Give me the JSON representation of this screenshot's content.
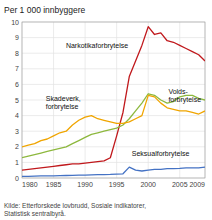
{
  "chart_data": {
    "type": "line",
    "title": "Per 1 000 innbyggere",
    "annotations": [
      "Kilde: Etterforskede lovbrudd, Sosiale indikatorer,\nStatistisk sentralbyrå."
    ],
    "x": [
      1980,
      1981,
      1982,
      1983,
      1984,
      1985,
      1986,
      1987,
      1988,
      1989,
      1990,
      1991,
      1992,
      1993,
      1994,
      1995,
      1996,
      1997,
      1998,
      1999,
      2000,
      2001,
      2002,
      2003,
      2004,
      2005,
      2006,
      2007,
      2008,
      2009
    ],
    "series": [
      {
        "name": "Narkotikaforbrytelse",
        "color": "#c0181c",
        "values": [
          0.5,
          0.55,
          0.6,
          0.65,
          0.7,
          0.75,
          0.8,
          0.85,
          0.9,
          0.9,
          0.95,
          1.0,
          1.05,
          1.1,
          1.3,
          2.7,
          4.2,
          6.5,
          7.5,
          8.5,
          9.7,
          9.2,
          9.3,
          8.8,
          8.7,
          8.5,
          8.3,
          8.1,
          7.9,
          7.5
        ]
      },
      {
        "name": "Volds-\nforbrytelse",
        "color": "#8db83e",
        "values": [
          1.3,
          1.4,
          1.5,
          1.6,
          1.7,
          1.8,
          1.9,
          2.0,
          2.2,
          2.4,
          2.6,
          2.8,
          2.9,
          3.0,
          3.1,
          3.2,
          3.4,
          3.8,
          4.3,
          4.8,
          5.4,
          5.3,
          5.0,
          4.8,
          4.9,
          5.2,
          5.3,
          5.3,
          5.1,
          5.0
        ]
      },
      {
        "name": "Skadeverk,\nforbrytelse",
        "color": "#f0a500",
        "values": [
          2.0,
          2.1,
          2.2,
          2.4,
          2.5,
          2.7,
          2.9,
          3.0,
          3.4,
          3.7,
          3.9,
          4.0,
          3.8,
          3.7,
          3.6,
          3.5,
          3.5,
          3.6,
          3.8,
          4.0,
          5.3,
          5.2,
          4.8,
          4.5,
          4.4,
          4.3,
          4.3,
          4.2,
          4.1,
          4.3
        ]
      },
      {
        "name": "Seksualforbrytelse",
        "color": "#4472c4",
        "values": [
          0.1,
          0.1,
          0.12,
          0.13,
          0.13,
          0.14,
          0.15,
          0.16,
          0.17,
          0.18,
          0.19,
          0.2,
          0.21,
          0.22,
          0.23,
          0.25,
          0.27,
          0.7,
          0.5,
          0.45,
          0.5,
          0.55,
          0.55,
          0.6,
          0.6,
          0.62,
          0.65,
          0.65,
          0.65,
          0.7
        ]
      }
    ],
    "xlim": [
      1980,
      2009
    ],
    "ylim": [
      0,
      10
    ],
    "xticks": [
      1980,
      1985,
      1990,
      1995,
      2000,
      2005,
      2009
    ],
    "yticks": [
      0,
      1,
      2,
      3,
      4,
      5,
      6,
      7,
      8,
      9,
      10
    ],
    "grid": true
  }
}
